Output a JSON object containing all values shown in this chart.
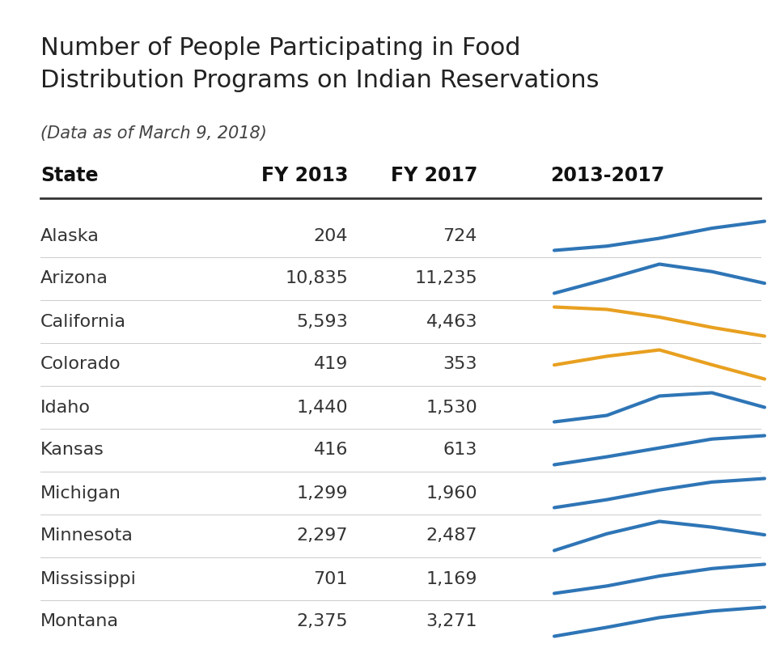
{
  "title_line1": "Number of People Participating in Food",
  "title_line2": "Distribution Programs on Indian Reservations",
  "subtitle": "(Data as of March 9, 2018)",
  "col_headers": [
    "State",
    "FY 2013",
    "FY 2017",
    "2013-2017"
  ],
  "rows": [
    {
      "state": "Alaska",
      "fy2013": "204",
      "fy2017": "724",
      "trend": [
        204,
        280,
        420,
        600,
        724
      ],
      "color": "#2e75b6"
    },
    {
      "state": "Arizona",
      "fy2013": "10,835",
      "fy2017": "11,235",
      "trend": [
        10835,
        11400,
        12000,
        11700,
        11235
      ],
      "color": "#2e75b6"
    },
    {
      "state": "California",
      "fy2013": "5,593",
      "fy2017": "4,463",
      "trend": [
        5593,
        5500,
        5200,
        4800,
        4463
      ],
      "color": "#e8a020"
    },
    {
      "state": "Colorado",
      "fy2013": "419",
      "fy2017": "353",
      "trend": [
        419,
        460,
        490,
        420,
        353
      ],
      "color": "#e8a020"
    },
    {
      "state": "Idaho",
      "fy2013": "1,440",
      "fy2017": "1,530",
      "trend": [
        1440,
        1480,
        1600,
        1620,
        1530
      ],
      "color": "#2e75b6"
    },
    {
      "state": "Kansas",
      "fy2013": "416",
      "fy2017": "613",
      "trend": [
        416,
        470,
        530,
        590,
        613
      ],
      "color": "#2e75b6"
    },
    {
      "state": "Michigan",
      "fy2013": "1,299",
      "fy2017": "1,960",
      "trend": [
        1299,
        1480,
        1700,
        1880,
        1960
      ],
      "color": "#2e75b6"
    },
    {
      "state": "Minnesota",
      "fy2013": "2,297",
      "fy2017": "2,487",
      "trend": [
        2297,
        2500,
        2650,
        2580,
        2487
      ],
      "color": "#2e75b6"
    },
    {
      "state": "Mississippi",
      "fy2013": "701",
      "fy2017": "1,169",
      "trend": [
        701,
        820,
        980,
        1100,
        1169
      ],
      "color": "#2e75b6"
    },
    {
      "state": "Montana",
      "fy2013": "2,375",
      "fy2017": "3,271",
      "trend": [
        2375,
        2650,
        2950,
        3150,
        3271
      ],
      "color": "#2e75b6"
    }
  ],
  "bg_color": "#ffffff",
  "title_fontsize": 22,
  "subtitle_fontsize": 15,
  "header_fontsize": 17,
  "data_fontsize": 16,
  "line_width": 3.0
}
